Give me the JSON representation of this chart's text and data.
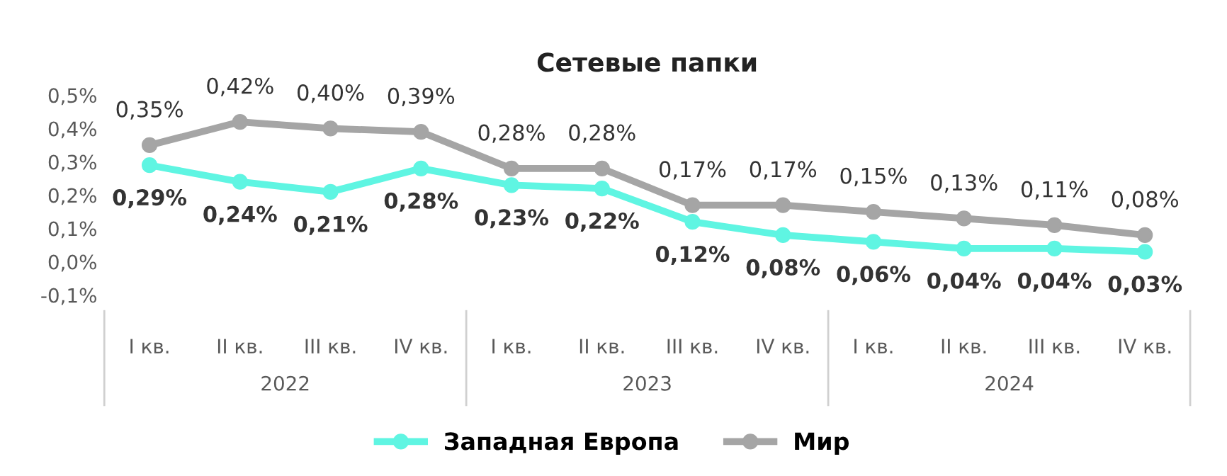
{
  "chart_data": {
    "type": "line",
    "title": "Сетевые папки",
    "categories": [
      "I кв.",
      "II кв.",
      "III кв.",
      "IV кв.",
      "I кв.",
      "II кв.",
      "III кв.",
      "IV кв.",
      "I кв.",
      "II кв.",
      "III кв.",
      "IV кв."
    ],
    "annotations": [
      "2022",
      "2023",
      "2024"
    ],
    "series": [
      {
        "name": "Западная Европа",
        "color": "#5ff5e2",
        "values": [
          0.29,
          0.24,
          0.21,
          0.28,
          0.23,
          0.22,
          0.12,
          0.08,
          0.06,
          0.04,
          0.04,
          0.03
        ],
        "value_labels": [
          "0,29%",
          "0,24%",
          "0,21%",
          "0,28%",
          "0,23%",
          "0,22%",
          "0,12%",
          "0,08%",
          "0,06%",
          "0,04%",
          "0,04%",
          "0,03%"
        ]
      },
      {
        "name": "Мир",
        "color": "#a5a5a5",
        "values": [
          0.35,
          0.42,
          0.4,
          0.39,
          0.28,
          0.28,
          0.17,
          0.17,
          0.15,
          0.13,
          0.11,
          0.08
        ],
        "value_labels": [
          "0,35%",
          "0,42%",
          "0,40%",
          "0,39%",
          "0,28%",
          "0,28%",
          "0,17%",
          "0,17%",
          "0,15%",
          "0,13%",
          "0,11%",
          "0,08%"
        ]
      }
    ],
    "ylim": [
      -0.1,
      0.5
    ],
    "yticks": [
      {
        "value": -0.1,
        "label": "-0,1%"
      },
      {
        "value": 0,
        "label": "0,0%"
      },
      {
        "value": 0.1,
        "label": "0,1%"
      },
      {
        "value": 0.2,
        "label": "0,2%"
      },
      {
        "value": 0.3,
        "label": "0,3%"
      },
      {
        "value": 0.4,
        "label": "0,4%"
      },
      {
        "value": 0.5,
        "label": "0,5%"
      }
    ],
    "marker": "circle",
    "line_style": "solid",
    "grid": false,
    "legend": "bottom"
  }
}
